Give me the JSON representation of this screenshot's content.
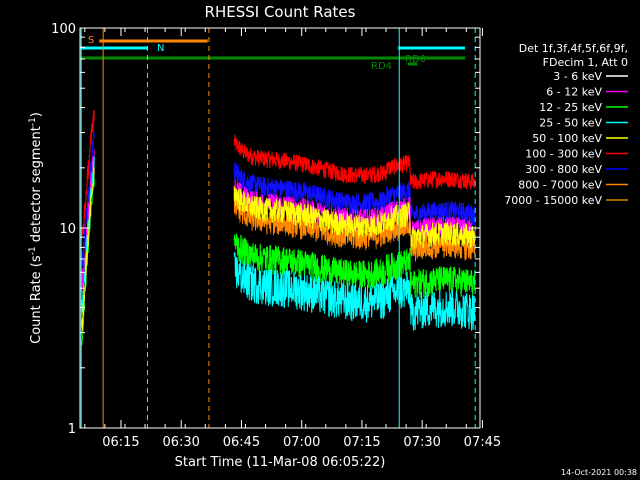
{
  "chart_data": {
    "type": "line",
    "title": "RHESSI Count Rates",
    "xlabel": "Start Time (11-Mar-08 06:05:22)",
    "ylabel_main": "Count Rate (s",
    "ylabel_sup1": "-1",
    "ylabel_mid": " detector segment",
    "ylabel_sup2": "-1",
    "ylabel_end": ")",
    "yscale": "log",
    "ylim": [
      1,
      100
    ],
    "xlim_minutes": [
      6.08,
      7.74
    ],
    "x_ticks": [
      {
        "label": "06:15",
        "hour": 6.25
      },
      {
        "label": "06:30",
        "hour": 6.5
      },
      {
        "label": "06:45",
        "hour": 6.75
      },
      {
        "label": "07:00",
        "hour": 7.0
      },
      {
        "label": "07:15",
        "hour": 7.25
      },
      {
        "label": "07:30",
        "hour": 7.5
      },
      {
        "label": "07:45",
        "hour": 7.75
      }
    ],
    "y_ticks": [
      {
        "label": "1",
        "value": 1
      },
      {
        "label": "10",
        "value": 10
      },
      {
        "label": "100",
        "value": 100
      }
    ],
    "legend_header": [
      "Det 1f,3f,4f,5f,6f,9f,",
      "FDecim 1, Att 0"
    ],
    "timestamp": "14-Oct-2021 00:38",
    "series": [
      {
        "name": "3 - 6 keV",
        "color": "#ffffff"
      },
      {
        "name": "6 - 12 keV",
        "color": "#ff00ff"
      },
      {
        "name": "12 - 25 keV",
        "color": "#00ff00"
      },
      {
        "name": "25 - 50 keV",
        "color": "#00ffff"
      },
      {
        "name": "50 - 100 keV",
        "color": "#ffff00"
      },
      {
        "name": "100 - 300 keV",
        "color": "#ff0000"
      },
      {
        "name": "300 - 800 keV",
        "color": "#0000ff"
      },
      {
        "name": "800 - 7000 keV",
        "color": "#ff8800"
      },
      {
        "name": "7000 - 15000 keV",
        "color": "#cc8800"
      }
    ],
    "trace_colors_hex": {
      "red": "#ff0000",
      "blue": "#1010ff",
      "magenta": "#ff00ff",
      "orange": "#ff8800",
      "yellow": "#ffff00",
      "black": "#000000",
      "green": "#00ff00",
      "cyan": "#00ffff"
    },
    "annotations": {
      "saa_label": "S",
      "night_label": "N",
      "rd0_label": "RD0",
      "rd4_label": "RD4"
    }
  }
}
